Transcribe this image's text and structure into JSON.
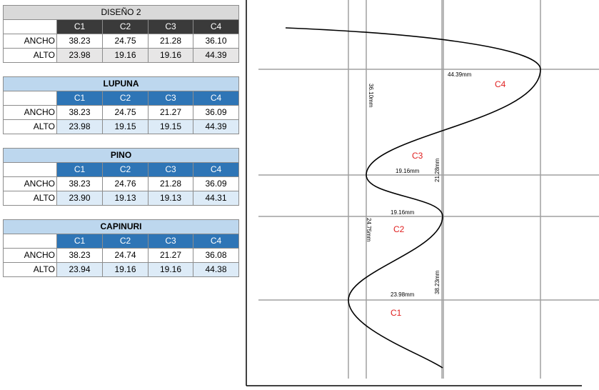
{
  "tables": [
    {
      "title": "DISEÑO 2",
      "headers": [
        "C1",
        "C2",
        "C3",
        "C4"
      ],
      "rows": [
        {
          "label": "ANCHO",
          "values": [
            "38.23",
            "24.75",
            "21.28",
            "36.10"
          ]
        },
        {
          "label": "ALTO",
          "values": [
            "23.98",
            "19.16",
            "19.16",
            "44.39"
          ]
        }
      ]
    },
    {
      "title": "LUPUNA",
      "headers": [
        "C1",
        "C2",
        "C3",
        "C4"
      ],
      "rows": [
        {
          "label": "ANCHO",
          "values": [
            "38.23",
            "24.75",
            "21.27",
            "36.09"
          ]
        },
        {
          "label": "ALTO",
          "values": [
            "23.98",
            "19.15",
            "19.15",
            "44.39"
          ]
        }
      ]
    },
    {
      "title": "PINO",
      "headers": [
        "C1",
        "C2",
        "C3",
        "C4"
      ],
      "rows": [
        {
          "label": "ANCHO",
          "values": [
            "38.23",
            "24.76",
            "21.28",
            "36.09"
          ]
        },
        {
          "label": "ALTO",
          "values": [
            "23.90",
            "19.13",
            "19.13",
            "44.31"
          ]
        }
      ]
    },
    {
      "title": "CAPINURI",
      "headers": [
        "C1",
        "C2",
        "C3",
        "C4"
      ],
      "rows": [
        {
          "label": "ANCHO",
          "values": [
            "38.23",
            "24.74",
            "21.27",
            "36.08"
          ]
        },
        {
          "label": "ALTO",
          "values": [
            "23.94",
            "19.16",
            "19.16",
            "44.38"
          ]
        }
      ]
    }
  ],
  "diagram": {
    "labels": [
      "44.39mm",
      "C4",
      "36.10mm",
      "C3",
      "19.16mm",
      "21.28mm",
      "19.16mm",
      "C2",
      "24.75mm",
      "38.23mm",
      "23.98mm",
      "C1"
    ]
  }
}
